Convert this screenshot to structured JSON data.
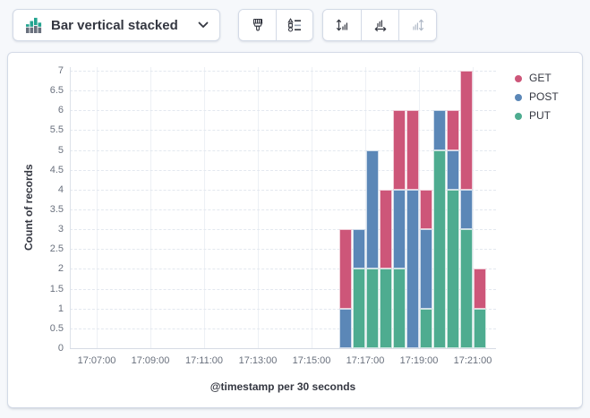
{
  "toolbar": {
    "chart_type": {
      "label": "Bar vertical stacked",
      "icon": "bar-vertical-stacked-icon"
    },
    "style_group": [
      {
        "id": "visual-options",
        "icon": "paintbrush-icon"
      },
      {
        "id": "legend-settings",
        "icon": "legend-list-icon"
      }
    ],
    "axis_group": [
      {
        "id": "left-axis",
        "icon": "axis-left-icon",
        "disabled": false
      },
      {
        "id": "bottom-axis",
        "icon": "axis-bottom-icon",
        "disabled": false
      },
      {
        "id": "right-axis",
        "icon": "axis-right-icon",
        "disabled": true
      }
    ]
  },
  "chart_data": {
    "type": "bar",
    "stacked": true,
    "xlabel": "@timestamp per 30 seconds",
    "ylabel": "Count of records",
    "ylim": [
      0,
      7
    ],
    "y_ticks": [
      0,
      0.5,
      1,
      1.5,
      2,
      2.5,
      3,
      3.5,
      4,
      4.5,
      5,
      5.5,
      6,
      6.5,
      7
    ],
    "x_ticks": [
      "17:07:00",
      "17:09:00",
      "17:11:00",
      "17:13:00",
      "17:15:00",
      "17:17:00",
      "17:19:00",
      "17:21:00"
    ],
    "x_domain_start": "17:06:00",
    "bucket_seconds": 30,
    "grid": true,
    "legend_position": "right",
    "categories": [
      "17:16:00",
      "17:16:30",
      "17:17:00",
      "17:17:30",
      "17:18:00",
      "17:18:30",
      "17:19:00",
      "17:19:30",
      "17:20:00",
      "17:20:30",
      "17:21:00"
    ],
    "series": [
      {
        "name": "GET",
        "color": "#CD5679",
        "values": [
          2,
          0,
          0,
          2,
          2,
          2,
          1,
          0,
          1,
          3,
          1
        ]
      },
      {
        "name": "POST",
        "color": "#5B87B7",
        "values": [
          1,
          1,
          3,
          0,
          2,
          4,
          2,
          1,
          1,
          1,
          0
        ]
      },
      {
        "name": "PUT",
        "color": "#4EAC90",
        "values": [
          0,
          2,
          2,
          2,
          2,
          0,
          1,
          5,
          4,
          3,
          1
        ]
      }
    ],
    "stack_order_bottom_to_top": [
      "PUT",
      "POST",
      "GET"
    ]
  }
}
